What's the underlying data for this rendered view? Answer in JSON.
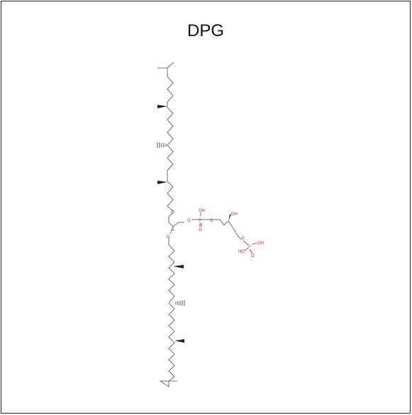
{
  "title": "DPG",
  "colors": {
    "bond": "#707070",
    "oxygen": "#e02020",
    "phosphorus": "#c040c0",
    "border": "#222222"
  },
  "atoms": {
    "o_ether_upper": "O",
    "o_ether_lower": "O",
    "o_ester_1": "O",
    "o_ester_2": "O",
    "o_ester_3": "O",
    "p_1": "P",
    "p_2": "P",
    "oh_p1": "OH",
    "o_p1": "O",
    "oh_glycerol": "OH",
    "oh_p2_a": "OH",
    "oh_p2_b": "HO",
    "o_p2": "O"
  }
}
